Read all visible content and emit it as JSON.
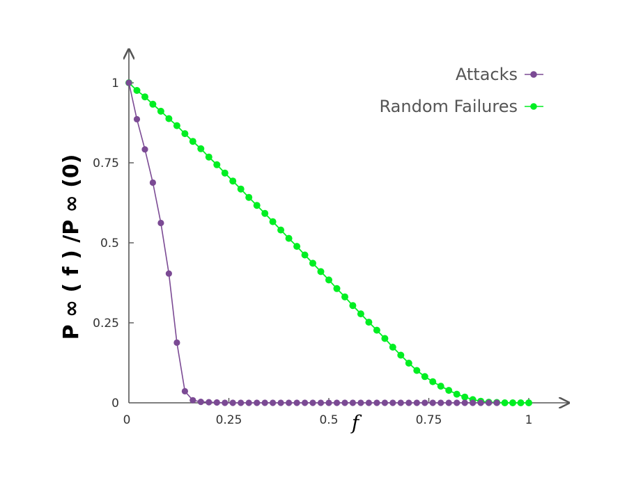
{
  "chart_data": {
    "type": "line",
    "title": "",
    "xlabel": "f",
    "ylabel": "P ∞ ( f ) /P ∞ (0)",
    "xlim": [
      0,
      1.1
    ],
    "ylim": [
      0,
      1.1
    ],
    "grid": false,
    "legend_position": "top-right",
    "x_ticks": [
      {
        "value": 0,
        "label": "0"
      },
      {
        "value": 0.25,
        "label": "0.25"
      },
      {
        "value": 0.5,
        "label": "0.5"
      },
      {
        "value": 0.75,
        "label": "0.75"
      },
      {
        "value": 1,
        "label": "1"
      }
    ],
    "y_ticks": [
      {
        "value": 0,
        "label": "0"
      },
      {
        "value": 0.25,
        "label": "0.25"
      },
      {
        "value": 0.5,
        "label": "0.5"
      },
      {
        "value": 0.75,
        "label": "0.75"
      },
      {
        "value": 1,
        "label": "1"
      }
    ],
    "series": [
      {
        "name": "Attacks",
        "color": "#7b4a94",
        "x": [
          0,
          0.02,
          0.04,
          0.06,
          0.08,
          0.1,
          0.12,
          0.14,
          0.16,
          0.18,
          0.2,
          0.22,
          0.24,
          0.26,
          0.28,
          0.3,
          0.32,
          0.34,
          0.36,
          0.38,
          0.4,
          0.42,
          0.44,
          0.46,
          0.48,
          0.5,
          0.52,
          0.54,
          0.56,
          0.58,
          0.6,
          0.62,
          0.64,
          0.66,
          0.68,
          0.7,
          0.72,
          0.74,
          0.76,
          0.78,
          0.8,
          0.82,
          0.84,
          0.86,
          0.88,
          0.9,
          0.92
        ],
        "y": [
          1,
          0.886,
          0.792,
          0.688,
          0.562,
          0.404,
          0.188,
          0.036,
          0.008,
          0.003,
          0.002,
          0.001,
          0,
          0,
          0,
          0,
          0,
          0,
          0,
          0,
          0,
          0,
          0,
          0,
          0,
          0,
          0,
          0,
          0,
          0,
          0,
          0,
          0,
          0,
          0,
          0,
          0,
          0,
          0,
          0,
          0,
          0,
          0,
          0,
          0,
          0,
          0
        ]
      },
      {
        "name": "Random Failures",
        "color": "#00ee22",
        "x": [
          0,
          0.02,
          0.04,
          0.06,
          0.08,
          0.1,
          0.12,
          0.14,
          0.16,
          0.18,
          0.2,
          0.22,
          0.24,
          0.26,
          0.28,
          0.3,
          0.32,
          0.34,
          0.36,
          0.38,
          0.4,
          0.42,
          0.44,
          0.46,
          0.48,
          0.5,
          0.52,
          0.54,
          0.56,
          0.58,
          0.6,
          0.62,
          0.64,
          0.66,
          0.68,
          0.7,
          0.72,
          0.74,
          0.76,
          0.78,
          0.8,
          0.82,
          0.84,
          0.86,
          0.88,
          0.9,
          0.92,
          0.94,
          0.96,
          0.98,
          1
        ],
        "y": [
          1,
          0.976,
          0.956,
          0.933,
          0.911,
          0.888,
          0.866,
          0.841,
          0.817,
          0.794,
          0.768,
          0.744,
          0.718,
          0.693,
          0.668,
          0.642,
          0.617,
          0.592,
          0.566,
          0.54,
          0.514,
          0.489,
          0.462,
          0.436,
          0.41,
          0.384,
          0.357,
          0.331,
          0.304,
          0.278,
          0.252,
          0.227,
          0.201,
          0.174,
          0.149,
          0.124,
          0.101,
          0.082,
          0.066,
          0.052,
          0.039,
          0.027,
          0.018,
          0.01,
          0.005,
          0.002,
          0.001,
          0,
          0,
          0,
          0
        ]
      }
    ]
  }
}
